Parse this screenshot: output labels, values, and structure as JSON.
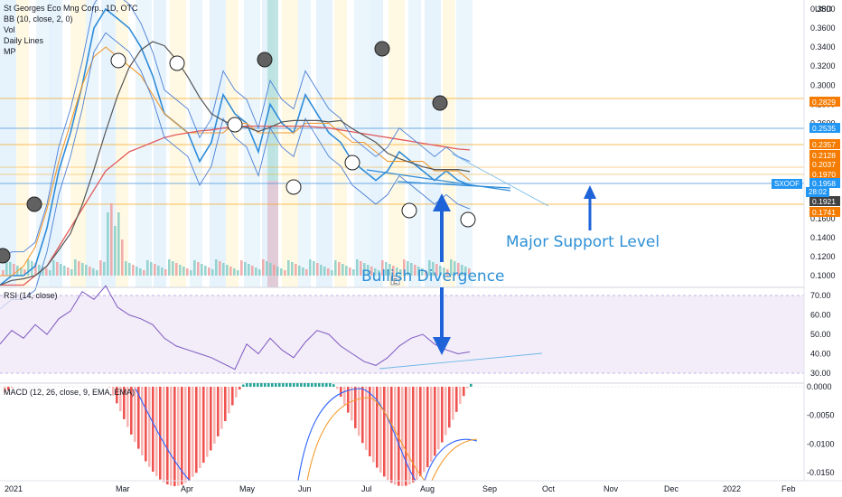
{
  "legend": {
    "title": "St Georges Eco Mng Corp., 1D, OTC",
    "indicators": [
      "BB (10, close, 2, 0)",
      "Vol",
      "Daily Lines",
      "MP"
    ]
  },
  "rsi_label": "RSI (14, close)",
  "macd_label": "MACD (12, 26, close, 9, EMA, EMA)",
  "currency": "USD",
  "symbol_tag": "SXOOF",
  "countdown": "28:02",
  "annotations": {
    "bullish": "Bullish Divergence",
    "support": "Major Support Level"
  },
  "colors": {
    "price_line": "#2f8cd9",
    "bb_band": "#4a7fd6",
    "ma_long": "#e25a5a",
    "ma_mid": "#555555",
    "ma_fast": "#f39b2f",
    "rsi_line": "#7e57c2",
    "macd_neg": "#ef5350",
    "macd_neg_light": "#f7b6b4",
    "macd_pos": "#26a69a",
    "annotation": "#2d8fd6",
    "tag_orange": "#f57c00",
    "tag_blue": "#2196f3",
    "tag_dark": "#424242"
  },
  "chart_data": [
    {
      "type": "line",
      "pane": "price",
      "y_axis_ticks": [
        "0.3800",
        "0.3600",
        "0.3400",
        "0.3200",
        "0.3000",
        "0.2800",
        "0.2600",
        "0.2400",
        "0.2200",
        "0.2000",
        "0.1800",
        "0.1600",
        "0.1400",
        "0.1200",
        "0.1000"
      ],
      "x_axis_ticks": [
        "2021",
        "Mar",
        "Apr",
        "May",
        "Jun",
        "Jul",
        "Aug",
        "Sep",
        "Oct",
        "Nov",
        "Dec",
        "2022",
        "Feb"
      ],
      "price_tags": [
        {
          "value": "0.2829",
          "color": "#f57c00"
        },
        {
          "value": "0.2535",
          "color": "#2196f3"
        },
        {
          "value": "0.2357",
          "color": "#f57c00"
        },
        {
          "value": "0.2128",
          "color": "#f57c00"
        },
        {
          "value": "0.2037",
          "color": "#f57c00"
        },
        {
          "value": "0.1970",
          "color": "#f57c00"
        },
        {
          "value": "0.1958",
          "color": "#2196f3"
        },
        {
          "value": "0.1921",
          "color": "#424242"
        },
        {
          "value": "0.1741",
          "color": "#f57c00"
        }
      ],
      "series": [
        {
          "values": [
            0.09,
            0.1,
            0.1,
            0.11,
            0.15,
            0.21,
            0.25,
            0.3,
            0.36,
            0.38,
            0.37,
            0.36,
            0.34,
            0.31,
            0.27,
            0.26,
            0.25,
            0.22,
            0.24,
            0.29,
            0.27,
            0.26,
            0.23,
            0.28,
            0.26,
            0.25,
            0.29,
            0.27,
            0.25,
            0.24,
            0.22,
            0.21,
            0.2,
            0.21,
            0.23,
            0.22,
            0.21,
            0.2,
            0.21,
            0.2,
            0.195
          ]
        },
        {
          "values": [
            0.1,
            0.1,
            0.11,
            0.13,
            0.17,
            0.22,
            0.26,
            0.3,
            0.33,
            0.34,
            0.33,
            0.32,
            0.31,
            0.29,
            0.27,
            0.26,
            0.25,
            0.25,
            0.25,
            0.25,
            0.26,
            0.26,
            0.25,
            0.25,
            0.25,
            0.25,
            0.26,
            0.26,
            0.26,
            0.25,
            0.24,
            0.24,
            0.23,
            0.22,
            0.22,
            0.22,
            0.22,
            0.21,
            0.21,
            0.21,
            0.2
          ]
        },
        {
          "values": [
            0.09,
            0.09,
            0.09,
            0.1,
            0.11,
            0.13,
            0.15,
            0.17,
            0.19,
            0.21,
            0.22,
            0.23,
            0.235,
            0.24,
            0.245,
            0.248,
            0.25,
            0.252,
            0.253,
            0.255,
            0.256,
            0.257,
            0.257,
            0.257,
            0.257,
            0.257,
            0.257,
            0.256,
            0.255,
            0.253,
            0.251,
            0.249,
            0.247,
            0.245,
            0.243,
            0.241,
            0.239,
            0.237,
            0.235,
            0.233,
            0.232
          ]
        }
      ]
    },
    {
      "type": "line",
      "pane": "rsi",
      "y_axis_ticks": [
        "70.00",
        "60.00",
        "50.00",
        "40.00",
        "30.00"
      ],
      "series": [
        {
          "values": [
            45,
            52,
            48,
            55,
            50,
            58,
            62,
            72,
            68,
            75,
            64,
            60,
            58,
            55,
            48,
            44,
            42,
            40,
            38,
            35,
            32,
            45,
            40,
            48,
            42,
            38,
            46,
            52,
            50,
            44,
            40,
            36,
            34,
            38,
            44,
            48,
            50,
            45,
            42,
            40,
            41
          ]
        }
      ]
    },
    {
      "type": "bar",
      "pane": "macd",
      "y_axis_ticks": [
        "0.0000",
        "-0.0050",
        "-0.0100",
        "-0.0150"
      ]
    }
  ]
}
